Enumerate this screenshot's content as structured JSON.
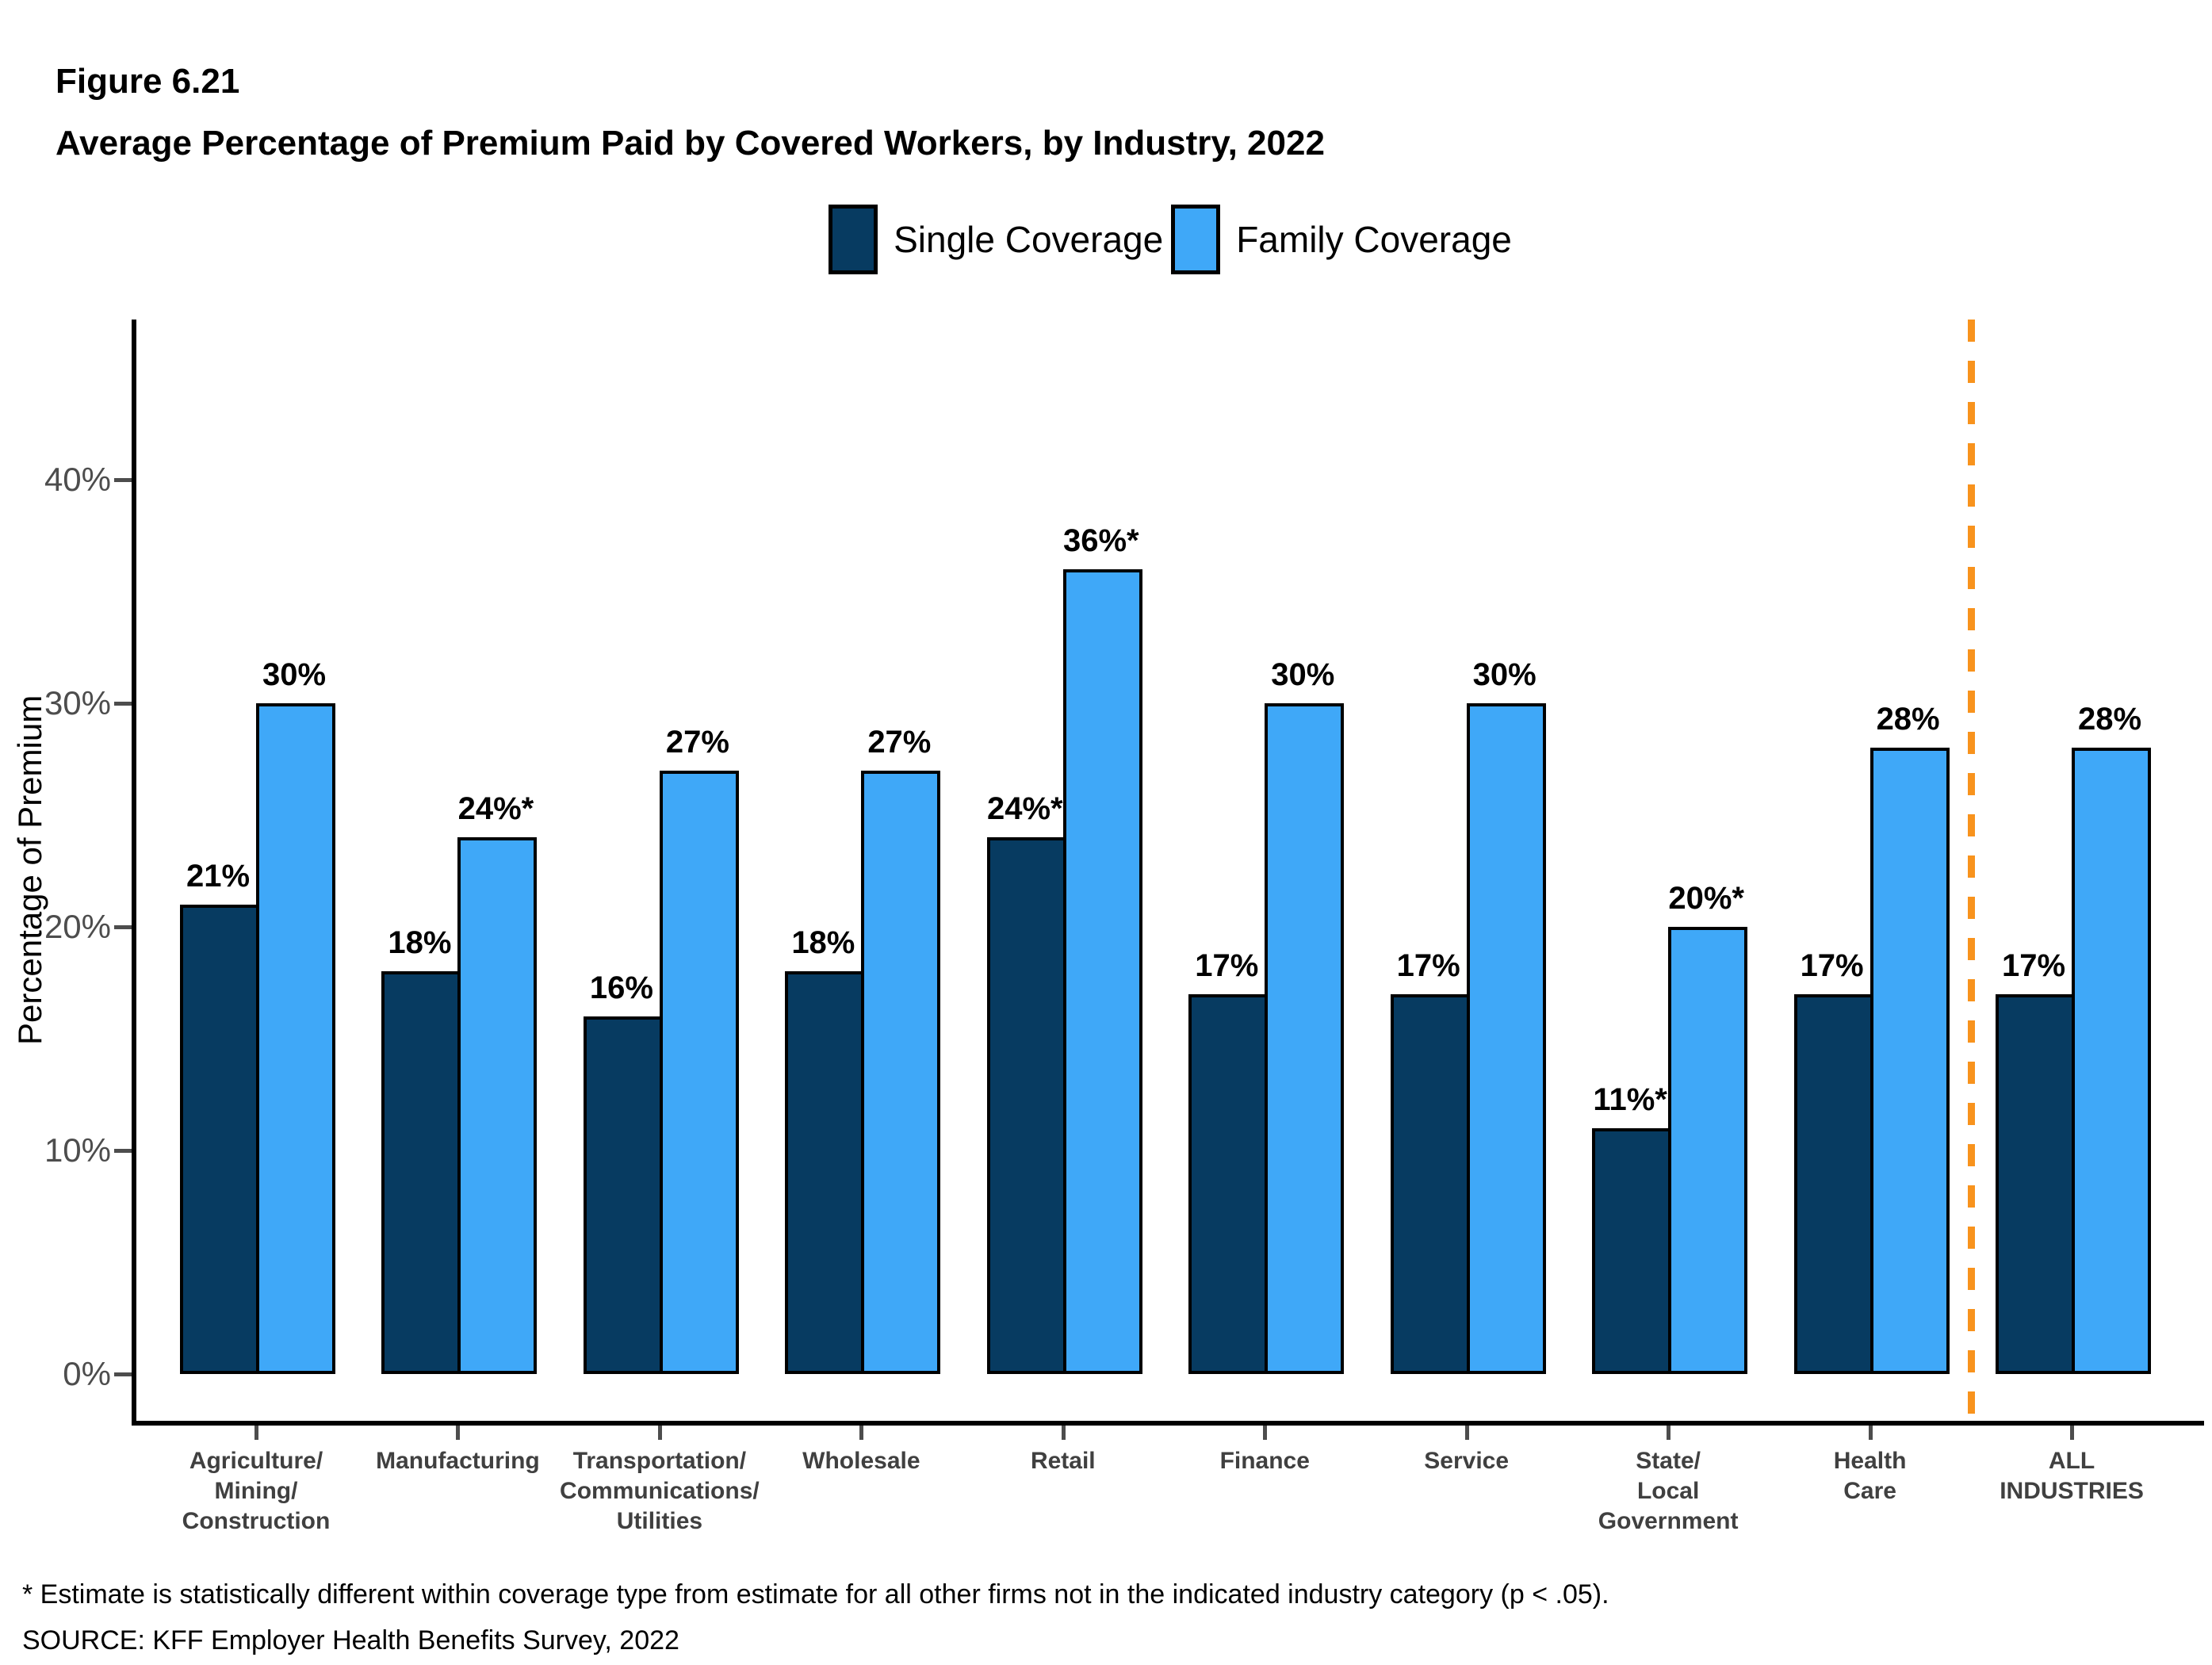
{
  "header": {
    "figure_label": "Figure 6.21",
    "title": "Average Percentage of Premium Paid by Covered Workers, by Industry, 2022"
  },
  "legend": {
    "items": [
      {
        "label": "Single Coverage",
        "color": "#073B61"
      },
      {
        "label": "Family Coverage",
        "color": "#3FA8F8"
      }
    ]
  },
  "y_axis": {
    "title": "Percentage of Premium",
    "ticks": [
      "0%",
      "10%",
      "20%",
      "30%",
      "40%"
    ]
  },
  "chart_data": {
    "type": "bar",
    "title": "Average Percentage of Premium Paid by Covered Workers, by Industry, 2022",
    "categories": [
      "Agriculture/Mining/Construction",
      "Manufacturing",
      "Transportation/Communications/Utilities",
      "Wholesale",
      "Retail",
      "Finance",
      "Service",
      "State/Local Government",
      "Health Care",
      "ALL INDUSTRIES"
    ],
    "category_label_lines": [
      [
        "Agriculture/",
        "Mining/",
        "Construction"
      ],
      [
        "Manufacturing"
      ],
      [
        "Transportation/",
        "Communications/",
        "Utilities"
      ],
      [
        "Wholesale"
      ],
      [
        "Retail"
      ],
      [
        "Finance"
      ],
      [
        "Service"
      ],
      [
        "State/",
        "Local",
        "Government"
      ],
      [
        "Health",
        "Care"
      ],
      [
        "ALL",
        "INDUSTRIES"
      ]
    ],
    "series": [
      {
        "name": "Single Coverage",
        "color": "#073B61",
        "values": [
          21,
          18,
          16,
          18,
          24,
          17,
          17,
          11,
          17,
          17
        ],
        "labels": [
          "21%",
          "18%",
          "16%",
          "18%",
          "24%*",
          "17%",
          "17%",
          "11%*",
          "17%",
          "17%"
        ]
      },
      {
        "name": "Family Coverage",
        "color": "#3FA8F8",
        "values": [
          30,
          24,
          27,
          27,
          36,
          30,
          30,
          20,
          28,
          28
        ],
        "labels": [
          "30%",
          "24%*",
          "27%",
          "27%",
          "36%*",
          "30%",
          "30%",
          "20%*",
          "28%",
          "28%"
        ]
      }
    ],
    "xlabel": "",
    "ylabel": "Percentage of Premium",
    "ylim": [
      0,
      47
    ],
    "y_ticks_percent": [
      0,
      10,
      20,
      30,
      40
    ],
    "grid": false,
    "legend_position": "top",
    "divider": {
      "after_category_index": 8,
      "color": "#F8931D",
      "style": "dashed"
    }
  },
  "footnotes": {
    "asterisk": "* Estimate is statistically different within coverage type from estimate for all other firms not in the indicated industry category (p < .05).",
    "source": "SOURCE: KFF Employer Health Benefits Survey, 2022"
  }
}
